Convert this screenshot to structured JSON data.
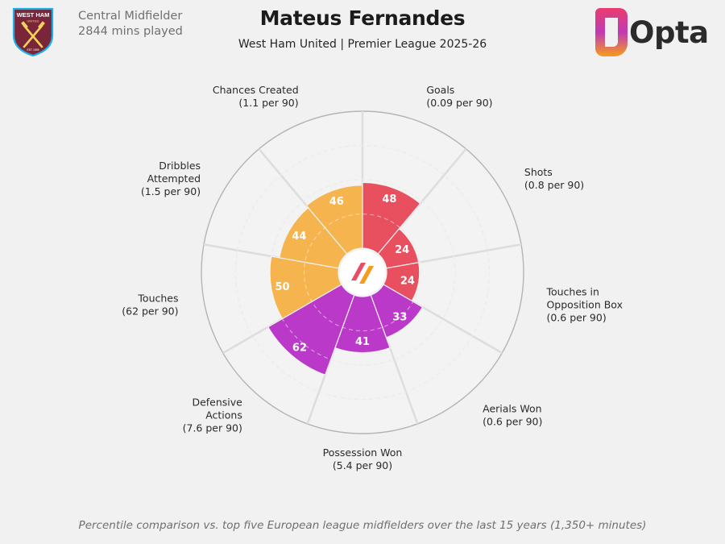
{
  "header": {
    "title": "Mateus Fernandes",
    "subtitle": "West Ham United | Premier League 2025-26"
  },
  "player": {
    "position": "Central Midfielder",
    "minutes": "2844 mins played"
  },
  "club_crest": {
    "icon": "west-ham-crest-icon",
    "text_top": "WEST HAM",
    "text_mid": "UNITED",
    "text_bottom": "EST 1895"
  },
  "brand": {
    "name": "Opta"
  },
  "footer": "Percentile comparison vs. top five European league midfielders over the last 15 years (1,350+ minutes)",
  "colors": {
    "attacking": "#e8505f",
    "possession": "#f5b44e",
    "defending": "#bb39c8",
    "grid": "#d6d6d6",
    "outer_ring": "#b4b4b4"
  },
  "chart_data": {
    "type": "polar-bar",
    "scale": [
      0,
      100
    ],
    "categories": [
      {
        "label": [
          "Goals"
        ],
        "value_text": "(0.09 per 90)",
        "percentile": 48,
        "group": "attacking"
      },
      {
        "label": [
          "Shots"
        ],
        "value_text": "(0.8 per 90)",
        "percentile": 24,
        "group": "attacking"
      },
      {
        "label": [
          "Touches in",
          "Opposition Box"
        ],
        "value_text": "(0.6 per 90)",
        "percentile": 24,
        "group": "attacking"
      },
      {
        "label": [
          "Aerials Won"
        ],
        "value_text": "(0.6 per 90)",
        "percentile": 33,
        "group": "defending"
      },
      {
        "label": [
          "Possession Won"
        ],
        "value_text": "(5.4 per 90)",
        "percentile": 41,
        "group": "defending"
      },
      {
        "label": [
          "Defensive",
          "Actions"
        ],
        "value_text": "(7.6 per 90)",
        "percentile": 62,
        "group": "defending"
      },
      {
        "label": [
          "Touches"
        ],
        "value_text": "(62 per 90)",
        "percentile": 50,
        "group": "possession"
      },
      {
        "label": [
          "Dribbles",
          "Attempted"
        ],
        "value_text": "(1.5 per 90)",
        "percentile": 44,
        "group": "possession"
      },
      {
        "label": [
          "Chances Created"
        ],
        "value_text": "(1.1 per 90)",
        "percentile": 46,
        "group": "possession"
      }
    ]
  }
}
